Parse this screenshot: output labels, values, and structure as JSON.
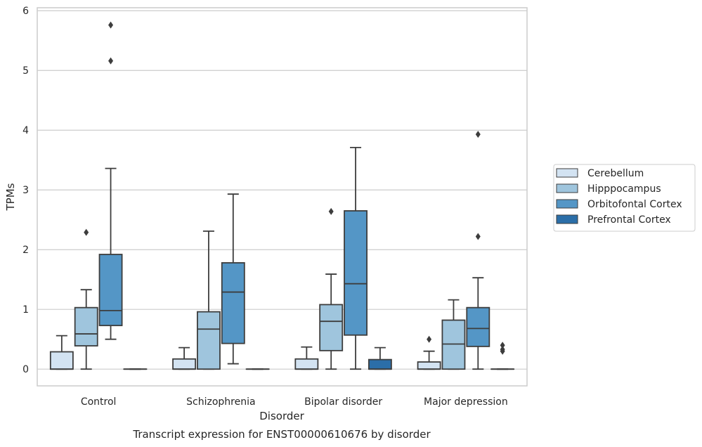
{
  "chart_data": {
    "type": "box",
    "title": "",
    "caption": "Transcript expression for ENST00000610676 by disorder",
    "xlabel": "Disorder",
    "ylabel": "TPMs",
    "ylim": [
      -0.28,
      6.05
    ],
    "yticks": [
      0,
      1,
      2,
      3,
      4,
      5,
      6
    ],
    "grid": "horizontal",
    "legend_position": "right",
    "categories": [
      "Control",
      "Schizophrenia",
      "Bipolar disorder",
      "Major depression"
    ],
    "series": [
      {
        "name": "Cerebellum",
        "color": "#d3e3f2",
        "boxes": [
          {
            "category": "Control",
            "whisker_low": 0,
            "q1": 0,
            "median": 0,
            "q3": 0.29,
            "whisker_high": 0.56,
            "outliers": []
          },
          {
            "category": "Schizophrenia",
            "whisker_low": 0,
            "q1": 0,
            "median": 0,
            "q3": 0.17,
            "whisker_high": 0.36,
            "outliers": []
          },
          {
            "category": "Bipolar disorder",
            "whisker_low": 0,
            "q1": 0,
            "median": 0,
            "q3": 0.17,
            "whisker_high": 0.37,
            "outliers": []
          },
          {
            "category": "Major depression",
            "whisker_low": 0,
            "q1": 0,
            "median": 0,
            "q3": 0.12,
            "whisker_high": 0.3,
            "outliers": [
              0.5
            ]
          }
        ]
      },
      {
        "name": "Hipppocampus",
        "color": "#9fc5dd",
        "boxes": [
          {
            "category": "Control",
            "whisker_low": 0,
            "q1": 0.39,
            "median": 0.59,
            "q3": 1.03,
            "whisker_high": 1.33,
            "outliers": [
              2.29
            ]
          },
          {
            "category": "Schizophrenia",
            "whisker_low": 0,
            "q1": 0,
            "median": 0.67,
            "q3": 0.96,
            "whisker_high": 2.31,
            "outliers": []
          },
          {
            "category": "Bipolar disorder",
            "whisker_low": 0,
            "q1": 0.31,
            "median": 0.8,
            "q3": 1.08,
            "whisker_high": 1.59,
            "outliers": [
              2.64
            ]
          },
          {
            "category": "Major depression",
            "whisker_low": 0,
            "q1": 0,
            "median": 0.42,
            "q3": 0.82,
            "whisker_high": 1.16,
            "outliers": []
          }
        ]
      },
      {
        "name": "Orbitofontal Cortex",
        "color": "#5496c6",
        "boxes": [
          {
            "category": "Control",
            "whisker_low": 0.5,
            "q1": 0.73,
            "median": 0.98,
            "q3": 1.92,
            "whisker_high": 3.36,
            "outliers": [
              5.16,
              5.76
            ]
          },
          {
            "category": "Schizophrenia",
            "whisker_low": 0.09,
            "q1": 0.43,
            "median": 1.29,
            "q3": 1.78,
            "whisker_high": 2.93,
            "outliers": []
          },
          {
            "category": "Bipolar disorder",
            "whisker_low": 0,
            "q1": 0.57,
            "median": 1.43,
            "q3": 2.65,
            "whisker_high": 3.71,
            "outliers": []
          },
          {
            "category": "Major depression",
            "whisker_low": 0,
            "q1": 0.38,
            "median": 0.68,
            "q3": 1.03,
            "whisker_high": 1.53,
            "outliers": [
              2.22,
              3.93
            ]
          }
        ]
      },
      {
        "name": "Prefrontal Cortex",
        "color": "#2b6ea8",
        "boxes": [
          {
            "category": "Control",
            "whisker_low": 0,
            "q1": 0,
            "median": 0,
            "q3": 0,
            "whisker_high": 0,
            "outliers": []
          },
          {
            "category": "Schizophrenia",
            "whisker_low": 0,
            "q1": 0,
            "median": 0,
            "q3": 0,
            "whisker_high": 0,
            "outliers": []
          },
          {
            "category": "Bipolar disorder",
            "whisker_low": 0,
            "q1": 0,
            "median": 0,
            "q3": 0.16,
            "whisker_high": 0.36,
            "outliers": []
          },
          {
            "category": "Major depression",
            "whisker_low": 0,
            "q1": 0,
            "median": 0,
            "q3": 0,
            "whisker_high": 0,
            "outliers": [
              0.3,
              0.33,
              0.4
            ]
          }
        ]
      }
    ]
  }
}
